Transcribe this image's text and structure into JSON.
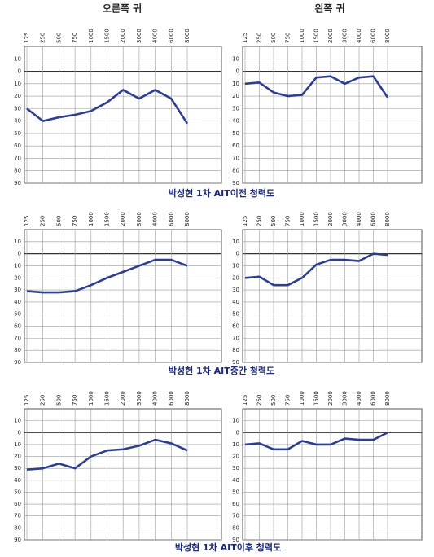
{
  "headers": [
    "오른쪽 귀",
    "왼쪽 귀"
  ],
  "captions": [
    "박성현 1차 AIT이전 청력도",
    "박성현 1차 AIT중간 청력도",
    "박성현 1차 AIT이후 청력도"
  ],
  "chart_data": [
    {
      "type": "line",
      "categories": [
        "125",
        "250",
        "500",
        "750",
        "1000",
        "1500",
        "2000",
        "3000",
        "4000",
        "6000",
        "8000"
      ],
      "values": [
        30,
        40,
        37,
        35,
        32,
        25,
        15,
        22,
        15,
        22,
        42
      ],
      "color": "#2f3f8f",
      "ylim": [
        90,
        -20
      ],
      "yticks": [
        {
          "value": -10,
          "label": "10"
        },
        0,
        10,
        20,
        30,
        40,
        50,
        60,
        70,
        80,
        90
      ],
      "grid": true
    },
    {
      "type": "line",
      "categories": [
        "125",
        "250",
        "500",
        "750",
        "1000",
        "1500",
        "2000",
        "3000",
        "4000",
        "6000",
        "8000"
      ],
      "values": [
        10,
        9,
        17,
        20,
        19,
        5,
        4,
        10,
        5,
        4,
        21
      ],
      "color": "#2f3f8f",
      "ylim": [
        90,
        -20
      ],
      "yticks": [
        {
          "value": -10,
          "label": "10"
        },
        0,
        10,
        20,
        30,
        40,
        50,
        60,
        70,
        80,
        90
      ],
      "grid": true
    },
    {
      "type": "line",
      "categories": [
        "125",
        "250",
        "500",
        "750",
        "1000",
        "1500",
        "2000",
        "3000",
        "4000",
        "6000",
        "8000"
      ],
      "values": [
        31,
        32,
        32,
        31,
        26,
        20,
        15,
        10,
        5,
        5,
        10
      ],
      "color": "#2f3f8f",
      "ylim": [
        90,
        -20
      ],
      "yticks": [
        {
          "value": -10,
          "label": "10"
        },
        0,
        10,
        20,
        30,
        40,
        50,
        60,
        70,
        80,
        90
      ],
      "grid": true
    },
    {
      "type": "line",
      "categories": [
        "125",
        "250",
        "500",
        "750",
        "1000",
        "1500",
        "2000",
        "3000",
        "4000",
        "6000",
        "8000"
      ],
      "values": [
        20,
        19,
        26,
        26,
        20,
        9,
        5,
        5,
        6,
        0,
        1
      ],
      "color": "#2f3f8f",
      "ylim": [
        90,
        -20
      ],
      "yticks": [
        {
          "value": -10,
          "label": "10"
        },
        0,
        10,
        20,
        30,
        40,
        50,
        60,
        70,
        80,
        90
      ],
      "grid": true
    },
    {
      "type": "line",
      "categories": [
        "125",
        "250",
        "500",
        "750",
        "1000",
        "1500",
        "2000",
        "3000",
        "4000",
        "6000",
        "8000"
      ],
      "values": [
        31,
        30,
        26,
        30,
        20,
        15,
        14,
        11,
        6,
        9,
        15
      ],
      "color": "#2f3f8f",
      "ylim": [
        90,
        -20
      ],
      "yticks": [
        {
          "value": -10,
          "label": "10"
        },
        0,
        10,
        20,
        30,
        40,
        50,
        60,
        70,
        80,
        90
      ],
      "grid": true
    },
    {
      "type": "line",
      "categories": [
        "125",
        "250",
        "500",
        "750",
        "1000",
        "1500",
        "2000",
        "3000",
        "4000",
        "6000",
        "8000"
      ],
      "values": [
        10,
        9,
        14,
        14,
        7,
        10,
        10,
        5,
        6,
        6,
        0
      ],
      "color": "#2f3f8f",
      "ylim": [
        90,
        -20
      ],
      "yticks": [
        {
          "value": -10,
          "label": "10"
        },
        0,
        10,
        20,
        30,
        40,
        50,
        60,
        70,
        80,
        90
      ],
      "grid": true
    }
  ]
}
